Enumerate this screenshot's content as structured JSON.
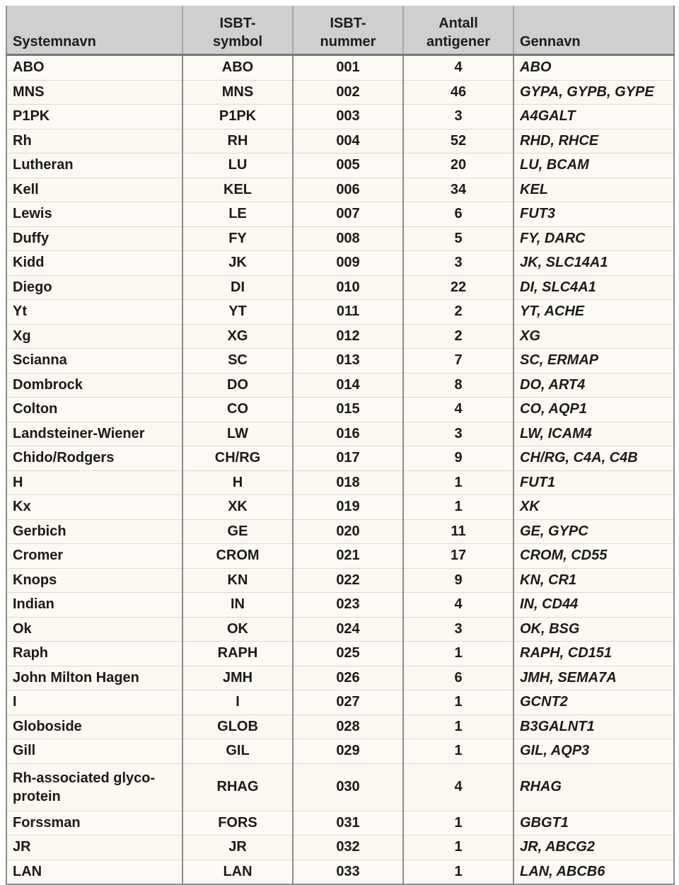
{
  "table": {
    "headers": [
      {
        "line1": "",
        "line2": "Systemnavn"
      },
      {
        "line1": "ISBT-",
        "line2": "symbol"
      },
      {
        "line1": "ISBT-",
        "line2": "nummer"
      },
      {
        "line1": "Antall",
        "line2": "antigener"
      },
      {
        "line1": "",
        "line2": "Gennavn"
      }
    ],
    "rows": [
      {
        "name": "ABO",
        "symbol": "ABO",
        "number": "001",
        "antigens": "4",
        "genes": "ABO"
      },
      {
        "name": "MNS",
        "symbol": "MNS",
        "number": "002",
        "antigens": "46",
        "genes": "GYPA, GYPB, GYPE"
      },
      {
        "name": "P1PK",
        "symbol": "P1PK",
        "number": "003",
        "antigens": "3",
        "genes": "A4GALT"
      },
      {
        "name": "Rh",
        "symbol": "RH",
        "number": "004",
        "antigens": "52",
        "genes": "RHD, RHCE"
      },
      {
        "name": "Lutheran",
        "symbol": "LU",
        "number": "005",
        "antigens": "20",
        "genes": "LU, BCAM"
      },
      {
        "name": "Kell",
        "symbol": "KEL",
        "number": "006",
        "antigens": "34",
        "genes": "KEL"
      },
      {
        "name": "Lewis",
        "symbol": "LE",
        "number": "007",
        "antigens": "6",
        "genes": "FUT3"
      },
      {
        "name": "Duffy",
        "symbol": "FY",
        "number": "008",
        "antigens": "5",
        "genes": "FY, DARC"
      },
      {
        "name": "Kidd",
        "symbol": "JK",
        "number": "009",
        "antigens": "3",
        "genes": "JK, SLC14A1"
      },
      {
        "name": "Diego",
        "symbol": "DI",
        "number": "010",
        "antigens": "22",
        "genes": "DI, SLC4A1"
      },
      {
        "name": "Yt",
        "symbol": "YT",
        "number": "011",
        "antigens": "2",
        "genes": "YT, ACHE"
      },
      {
        "name": "Xg",
        "symbol": "XG",
        "number": "012",
        "antigens": "2",
        "genes": "XG"
      },
      {
        "name": "Scianna",
        "symbol": "SC",
        "number": "013",
        "antigens": "7",
        "genes": "SC, ERMAP"
      },
      {
        "name": "Dombrock",
        "symbol": "DO",
        "number": "014",
        "antigens": "8",
        "genes": "DO, ART4"
      },
      {
        "name": "Colton",
        "symbol": "CO",
        "number": "015",
        "antigens": "4",
        "genes": "CO, AQP1"
      },
      {
        "name": "Landsteiner-Wiener",
        "symbol": "LW",
        "number": "016",
        "antigens": "3",
        "genes": "LW, ICAM4"
      },
      {
        "name": "Chido/Rodgers",
        "symbol": "CH/RG",
        "number": "017",
        "antigens": "9",
        "genes": "CH/RG, C4A, C4B"
      },
      {
        "name": "H",
        "symbol": "H",
        "number": "018",
        "antigens": "1",
        "genes": "FUT1"
      },
      {
        "name": "Kx",
        "symbol": "XK",
        "number": "019",
        "antigens": "1",
        "genes": "XK"
      },
      {
        "name": "Gerbich",
        "symbol": "GE",
        "number": "020",
        "antigens": "11",
        "genes": "GE, GYPC"
      },
      {
        "name": "Cromer",
        "symbol": "CROM",
        "number": "021",
        "antigens": "17",
        "genes": "CROM, CD55"
      },
      {
        "name": "Knops",
        "symbol": "KN",
        "number": "022",
        "antigens": "9",
        "genes": "KN, CR1"
      },
      {
        "name": "Indian",
        "symbol": "IN",
        "number": "023",
        "antigens": "4",
        "genes": "IN, CD44"
      },
      {
        "name": "Ok",
        "symbol": "OK",
        "number": "024",
        "antigens": "3",
        "genes": "OK, BSG"
      },
      {
        "name": "Raph",
        "symbol": "RAPH",
        "number": "025",
        "antigens": "1",
        "genes": "RAPH, CD151"
      },
      {
        "name": "John Milton Hagen",
        "symbol": "JMH",
        "number": "026",
        "antigens": "6",
        "genes": "JMH, SEMA7A"
      },
      {
        "name": "I",
        "symbol": "I",
        "number": "027",
        "antigens": "1",
        "genes": "GCNT2"
      },
      {
        "name": "Globoside",
        "symbol": "GLOB",
        "number": "028",
        "antigens": "1",
        "genes": "B3GALNT1"
      },
      {
        "name": "Gill",
        "symbol": "GIL",
        "number": "029",
        "antigens": "1",
        "genes": "GIL, AQP3"
      },
      {
        "name": "Rh-associated glyco-protein",
        "symbol": "RHAG",
        "number": "030",
        "antigens": "4",
        "genes": "RHAG"
      },
      {
        "name": "Forssman",
        "symbol": "FORS",
        "number": "031",
        "antigens": "1",
        "genes": "GBGT1"
      },
      {
        "name": "JR",
        "symbol": "JR",
        "number": "032",
        "antigens": "1",
        "genes": "JR, ABCG2"
      },
      {
        "name": "LAN",
        "symbol": "LAN",
        "number": "033",
        "antigens": "1",
        "genes": "LAN, ABCB6"
      }
    ]
  }
}
